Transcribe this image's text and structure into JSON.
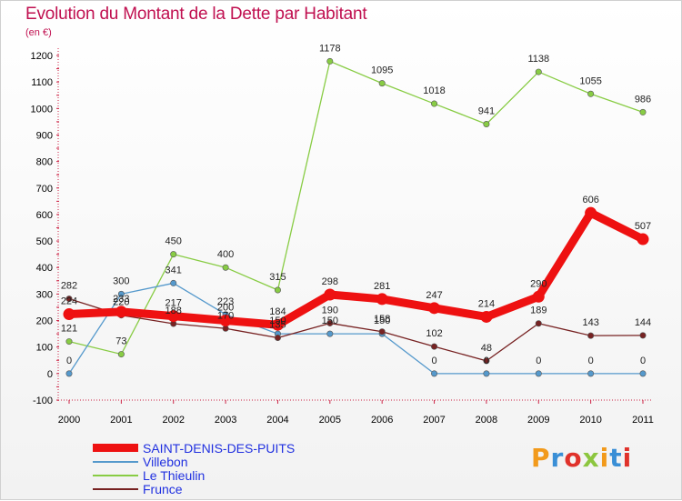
{
  "chart_data": {
    "type": "line",
    "title": "Evolution du Montant de la Dette par Habitant",
    "subtitle": "(en €)",
    "x": [
      "2000",
      "2001",
      "2002",
      "2003",
      "2004",
      "2005",
      "2006",
      "2007",
      "2008",
      "2009",
      "2010",
      "2011"
    ],
    "y_ticks": [
      -100,
      0,
      100,
      200,
      300,
      400,
      500,
      600,
      700,
      800,
      900,
      1000,
      1100,
      1200
    ],
    "ylim": [
      -100,
      1200
    ],
    "grid": false,
    "legend_position": "bottom-left",
    "series": [
      {
        "name": "SAINT-DENIS-DES-PUITS",
        "color": "#ee1111",
        "width": "thick",
        "values": [
          224,
          233,
          217,
          200,
          184,
          298,
          281,
          247,
          214,
          290,
          606,
          507
        ]
      },
      {
        "name": "Villebon",
        "color": "#5599cc",
        "width": "thin",
        "values": [
          0,
          300,
          341,
          223,
          150,
          150,
          150,
          0,
          0,
          0,
          0,
          0
        ]
      },
      {
        "name": "Le Thieulin",
        "color": "#88cc44",
        "width": "thin",
        "values": [
          121,
          73,
          450,
          400,
          315,
          1178,
          1095,
          1018,
          941,
          1138,
          1055,
          986
        ]
      },
      {
        "name": "Frunce",
        "color": "#772222",
        "width": "thin",
        "values": [
          282,
          220,
          188,
          170,
          135,
          190,
          158,
          102,
          48,
          189,
          143,
          144
        ]
      }
    ],
    "labels": [
      [
        224,
        233,
        217,
        200,
        184,
        298,
        281,
        247,
        214,
        290,
        606,
        507
      ],
      [
        0,
        300,
        341,
        223,
        150,
        150,
        150,
        0,
        0,
        0,
        0,
        0
      ],
      [
        121,
        73,
        450,
        400,
        315,
        1178,
        1095,
        1018,
        941,
        1138,
        1055,
        986
      ],
      [
        282,
        220,
        188,
        170,
        135,
        190,
        158,
        102,
        48,
        189,
        143,
        144
      ]
    ]
  },
  "legend": {
    "items": [
      {
        "label": "SAINT-DENIS-DES-PUITS"
      },
      {
        "label": "Villebon"
      },
      {
        "label": "Le Thieulin"
      },
      {
        "label": "Frunce"
      }
    ]
  },
  "brand": {
    "text": "Proxiti"
  }
}
